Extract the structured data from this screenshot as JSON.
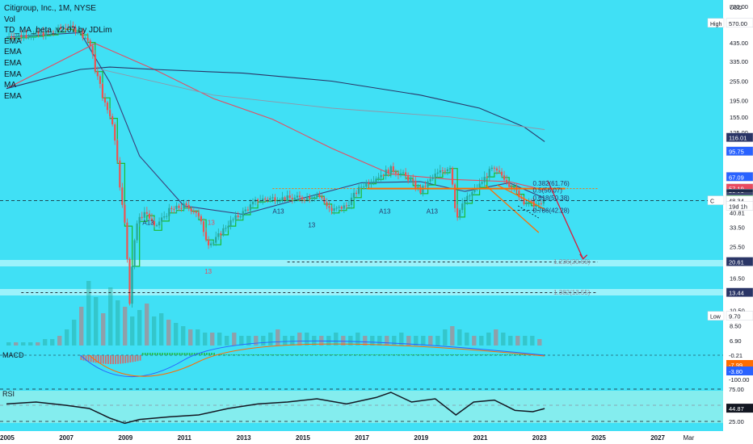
{
  "header": {
    "symbol": "Citigroup, Inc., 1M, NYSE",
    "indicators": [
      "Vol",
      "TD_MA_beta_v2.07 by JDLim",
      "EMA",
      "EMA",
      "EMA",
      "EMA",
      "MA",
      "EMA"
    ]
  },
  "colors": {
    "background": "#40e0f5",
    "up_candle": "#26a69a",
    "down_candle": "#ef5350",
    "td_step": "#1db82e",
    "resistance": "#ff6d00",
    "rsi_band": "#b2f5ea",
    "support_band": "#9bf2fb"
  },
  "chart_data": [
    {
      "type": "line",
      "panel": "price",
      "scale": "log",
      "currency": "USD",
      "x_axis_labels": [
        "2005",
        "2007",
        "2009",
        "2011",
        "2013",
        "2015",
        "2017",
        "2019",
        "2021",
        "2023",
        "2025",
        "2027",
        "Mar"
      ],
      "y_axis_labels": [
        "720.00",
        "570.00",
        "435.00",
        "335.00",
        "255.00",
        "195.00",
        "155.00",
        "125.00",
        "95.75",
        "67.09",
        "53.10",
        "40.81",
        "33.50",
        "25.50",
        "20.61",
        "16.50",
        "13.44",
        "10.50",
        "9.70",
        "8.50",
        "6.90"
      ],
      "price_badges": [
        "116.01",
        "95.75",
        "67.09",
        "57.19",
        "53.10",
        "50.35",
        "48.81",
        "48.34",
        "19d 1h",
        "20.61",
        "13.44",
        "570.00",
        "9.70"
      ],
      "badge_labels": {
        "high": "High",
        "low": "Low",
        "last": "C"
      },
      "fib_labels": [
        "0.382(61.76)",
        "0.5(56.07)",
        "0.618(50.38)",
        "0.786(42.28)",
        "1.236(20.69)",
        "1.382(13.55)"
      ],
      "td_labels": [
        "13",
        "A13",
        "13",
        "13",
        "A13",
        "A13",
        "A13"
      ],
      "series": [
        {
          "name": "Price (approx. monthly close)",
          "x": [
            2005.0,
            2005.5,
            2006.0,
            2006.5,
            2007.0,
            2007.4,
            2007.8,
            2008.0,
            2008.3,
            2008.6,
            2008.8,
            2009.0,
            2009.15,
            2009.4,
            2009.7,
            2010.0,
            2010.5,
            2011.0,
            2011.4,
            2011.8,
            2012.0,
            2012.5,
            2013.0,
            2013.5,
            2014.0,
            2014.5,
            2015.0,
            2015.5,
            2016.0,
            2016.5,
            2017.0,
            2017.5,
            2018.0,
            2018.5,
            2019.0,
            2019.5,
            2020.0,
            2020.2,
            2020.5,
            2021.0,
            2021.4,
            2021.8,
            2022.0,
            2022.5,
            2023.0,
            2023.2
          ],
          "values": [
            475,
            480,
            490,
            500,
            540,
            520,
            440,
            300,
            190,
            140,
            65,
            35,
            10,
            35,
            42,
            33,
            42,
            45,
            42,
            27,
            27,
            35,
            41,
            49,
            50,
            50,
            50,
            53,
            42,
            45,
            59,
            67,
            75,
            68,
            55,
            69,
            78,
            38,
            48,
            60,
            75,
            68,
            61,
            48,
            45,
            48.34
          ]
        },
        {
          "name": "EMA (short)",
          "x": [
            2005.0,
            2007.5,
            2008.5,
            2009.5,
            2011.0,
            2013.0,
            2015.0,
            2017.0,
            2019.0,
            2020.5,
            2022.0,
            2023.2
          ],
          "values": [
            470,
            500,
            250,
            90,
            45,
            40,
            50,
            62,
            63,
            55,
            62,
            50
          ]
        },
        {
          "name": "EMA (long)",
          "x": [
            2005.0,
            2008.0,
            2010.0,
            2012.0,
            2014.0,
            2016.0,
            2018.0,
            2020.0,
            2022.0,
            2023.2
          ],
          "values": [
            230,
            430,
            300,
            200,
            150,
            100,
            70,
            65,
            63,
            56
          ]
        },
        {
          "name": "EMA (very long)",
          "x": [
            2005.0,
            2007.5,
            2008.5,
            2010.0,
            2013.0,
            2016.0,
            2019.0,
            2021.0,
            2022.5,
            2023.2
          ],
          "values": [
            230,
            300,
            310,
            300,
            285,
            255,
            210,
            175,
            135,
            110
          ]
        },
        {
          "name": "MA",
          "x": [
            2008.2,
            2012.0,
            2016.0,
            2020.0,
            2023.2
          ],
          "values": [
            300,
            210,
            175,
            155,
            130
          ]
        }
      ],
      "levels": {
        "resistance": 57.19,
        "supports": [
          20.61,
          13.44
        ],
        "last": 48.34,
        "high": 570.0,
        "low": 9.7
      },
      "volume_bars": [
        1,
        1,
        1,
        1,
        1,
        2,
        2,
        3,
        5,
        8,
        12,
        20,
        15,
        10,
        18,
        14,
        12,
        9,
        11,
        13,
        9,
        10,
        8,
        7,
        6,
        5,
        5,
        4,
        4,
        4,
        3,
        4,
        3,
        3,
        3,
        3,
        4,
        5,
        3,
        3,
        4,
        4,
        3,
        3,
        3,
        4,
        3,
        3,
        4,
        3,
        3,
        3,
        3,
        3,
        4,
        3,
        3,
        3,
        3,
        3,
        5,
        6,
        5,
        4,
        3,
        3,
        4,
        5,
        4,
        3,
        3,
        3,
        3,
        2
      ]
    },
    {
      "type": "area",
      "panel": "MACD",
      "title": "MACD",
      "y_axis_labels": [
        "-0.21",
        "-7.99",
        "-3.80",
        "-100.00"
      ]
    },
    {
      "type": "line",
      "panel": "RSI",
      "title": "RSI",
      "y_axis_labels": [
        "75.00",
        "44.87",
        "25.00"
      ],
      "ylim": [
        15,
        80
      ],
      "x": [
        2005.0,
        2006.0,
        2007.0,
        2007.8,
        2008.5,
        2009.0,
        2009.5,
        2010.5,
        2011.5,
        2012.5,
        2013.5,
        2014.5,
        2015.5,
        2016.5,
        2017.5,
        2018.0,
        2018.7,
        2019.5,
        2020.2,
        2020.8,
        2021.5,
        2022.2,
        2022.8,
        2023.2
      ],
      "values": [
        52,
        55,
        50,
        45,
        30,
        22,
        28,
        32,
        35,
        45,
        52,
        55,
        60,
        52,
        62,
        70,
        55,
        60,
        35,
        55,
        58,
        42,
        40,
        44.87
      ]
    }
  ]
}
